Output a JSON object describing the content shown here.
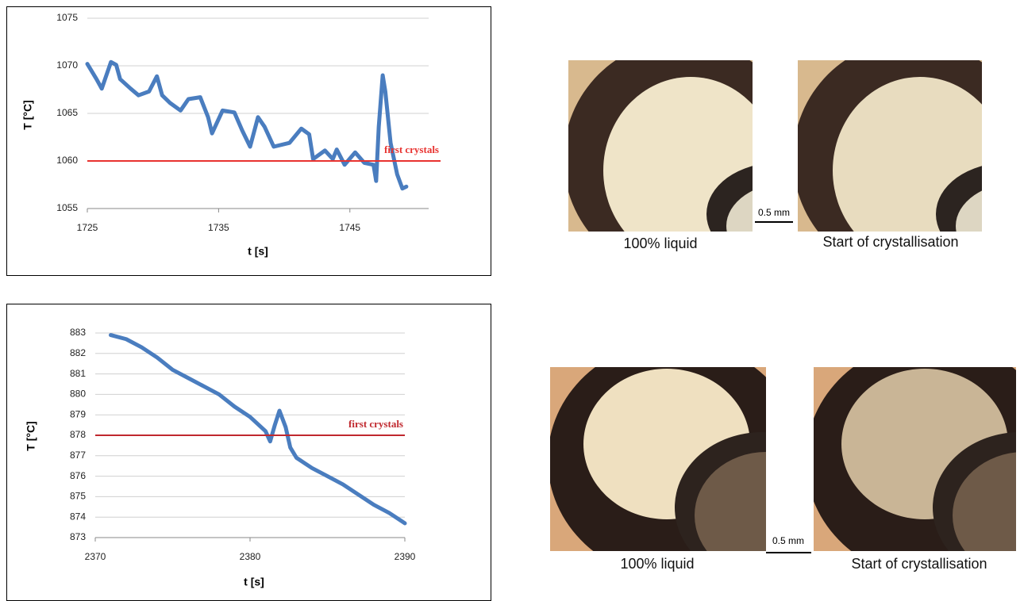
{
  "chart_data": [
    {
      "type": "line",
      "xlabel": "t [s]",
      "ylabel": "T [°C]",
      "color": "#4a7dbf",
      "x": [
        1725,
        1725.7,
        1726.1,
        1726.8,
        1727.2,
        1727.5,
        1728.3,
        1728.9,
        1729.7,
        1730.3,
        1730.7,
        1731.3,
        1732.1,
        1732.7,
        1733.6,
        1734.2,
        1734.5,
        1735.3,
        1736.2,
        1736.8,
        1737.4,
        1738,
        1738.5,
        1739.2,
        1740.4,
        1741.3,
        1741.9,
        1742.2,
        1743.1,
        1743.7,
        1744,
        1744.6,
        1745.4,
        1746.1,
        1746.8,
        1747,
        1747.2,
        1747.5,
        1747.7,
        1748.1,
        1748.6,
        1749,
        1749.3
      ],
      "values": [
        1070.2,
        1068.6,
        1067.6,
        1070.4,
        1070.1,
        1068.6,
        1067.6,
        1066.9,
        1067.3,
        1068.9,
        1066.9,
        1066.1,
        1065.3,
        1066.5,
        1066.7,
        1064.6,
        1062.9,
        1065.3,
        1065.1,
        1063.2,
        1061.5,
        1064.6,
        1063.6,
        1061.5,
        1061.9,
        1063.4,
        1062.8,
        1060.2,
        1061.1,
        1060.2,
        1061.2,
        1059.6,
        1060.9,
        1059.8,
        1059.6,
        1057.9,
        1063.6,
        1069,
        1067.3,
        1061.9,
        1058.6,
        1057.1,
        1057.3
      ],
      "xlim": [
        1725,
        1751
      ],
      "xticks": [
        1725,
        1735,
        1745
      ],
      "ylim": [
        1055,
        1075
      ],
      "yticks": [
        1055,
        1060,
        1065,
        1070,
        1075
      ],
      "grid": true,
      "reference": {
        "value": 1060,
        "label": "first crystals",
        "color": "#e8322f"
      }
    },
    {
      "type": "line",
      "xlabel": "t [s]",
      "ylabel": "T [°C]",
      "color": "#4a7dbf",
      "x": [
        2371,
        2372,
        2373,
        2374,
        2375,
        2376,
        2377,
        2378,
        2379,
        2380,
        2381,
        2381.3,
        2381.6,
        2381.9,
        2382.3,
        2382.6,
        2383,
        2384,
        2385,
        2386,
        2387,
        2388,
        2389,
        2390
      ],
      "values": [
        882.9,
        882.7,
        882.3,
        881.8,
        881.2,
        880.8,
        880.4,
        880,
        879.4,
        878.9,
        878.2,
        877.7,
        878.5,
        879.2,
        878.4,
        877.4,
        876.9,
        876.4,
        876,
        875.6,
        875.1,
        874.6,
        874.2,
        873.7
      ],
      "xlim": [
        2370,
        2390
      ],
      "xticks": [
        2370,
        2380,
        2390
      ],
      "ylim": [
        873,
        883
      ],
      "yticks": [
        873,
        874,
        875,
        876,
        877,
        878,
        879,
        880,
        881,
        882,
        883
      ],
      "grid": true,
      "reference": {
        "value": 878,
        "label": "first crystals",
        "color": "#c0282e"
      }
    }
  ],
  "figures": [
    {
      "captions": [
        "100% liquid",
        "Start of crystallisation"
      ],
      "scale": "0.5 mm"
    },
    {
      "captions": [
        "100% liquid",
        "Start of crystallisation"
      ],
      "scale": "0.5 mm"
    }
  ]
}
